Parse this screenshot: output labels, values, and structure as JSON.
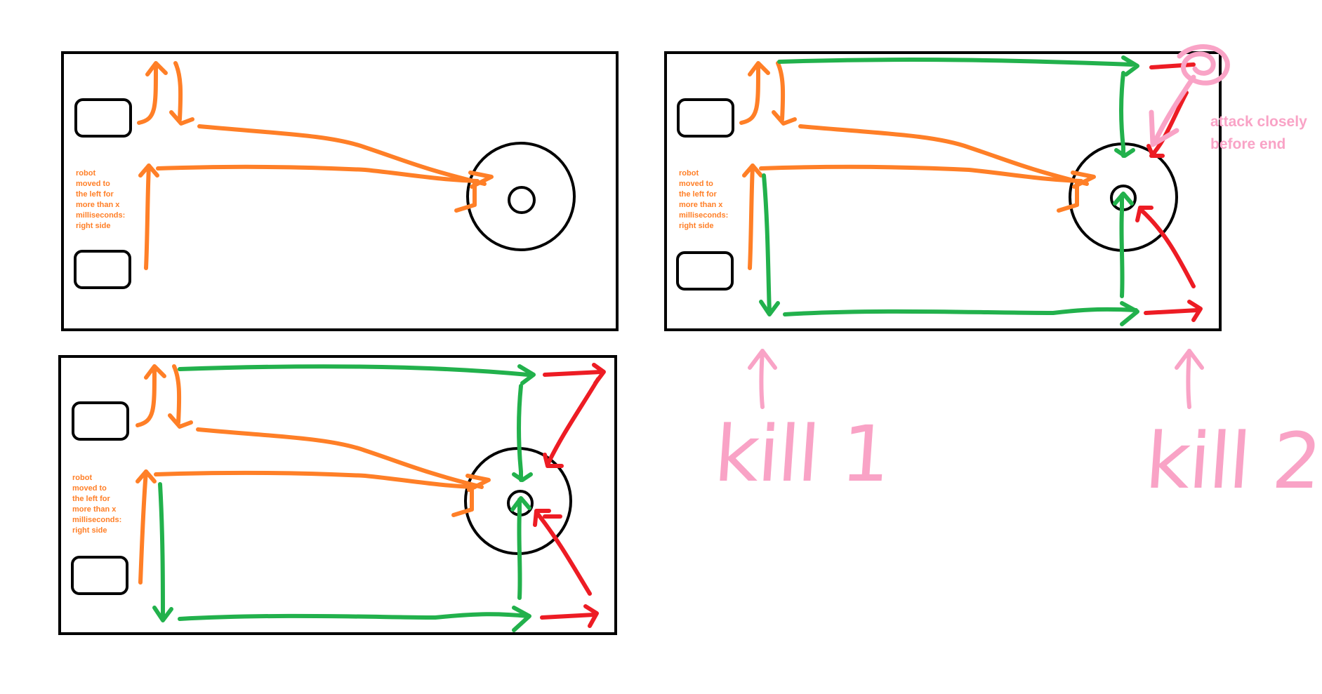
{
  "colors": {
    "orange": "#ff7f27",
    "green": "#22b14c",
    "red": "#ed1c24",
    "pink": "#f9a3c6",
    "outline": "#000000"
  },
  "panels": [
    {
      "id": "panel-1",
      "note": "robot\nmoved to\nthe left for\nmore than x\nmilliseconds:\nright side"
    },
    {
      "id": "panel-2",
      "note": "robot\nmoved to\nthe left for\nmore than x\nmilliseconds:\nright side"
    },
    {
      "id": "panel-3",
      "note": "robot\nmoved to\nthe left for\nmore than x\nmilliseconds:\nright side"
    }
  ],
  "annotations": {
    "attack_note": "attack closely\nbefore end",
    "kill_1": "kill 1",
    "kill_2": "kill 2"
  }
}
